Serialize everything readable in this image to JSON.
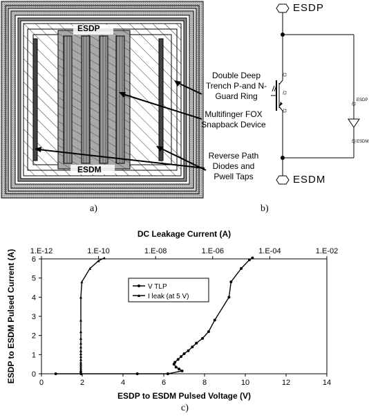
{
  "panel_a": {
    "caption": "a)",
    "label_top": "ESDP",
    "label_bottom": "ESDM",
    "annotations": {
      "guard_ring": "Double Deep Trench P-and N- Guard Ring",
      "fox_device": "Multifinger FOX Snapback Device",
      "diodes": "Reverse Path Diodes and Pwell Taps"
    }
  },
  "panel_b": {
    "caption": "b)",
    "terminal_top": "ESDP",
    "terminal_bottom": "ESDM",
    "small_top": "ESDP",
    "small_bottom": "ESDM"
  },
  "panel_c": {
    "caption": "c)"
  },
  "chart_data": {
    "type": "scatter",
    "title": "DC Leakage Current (A)",
    "xlabel": "ESDP to ESDM Pulsed Voltage (V)",
    "ylabel": "ESDP to ESDM Pulsed Current (A)",
    "xlim": [
      0,
      14
    ],
    "ylim": [
      0,
      6
    ],
    "x_ticks": [
      "0",
      "2",
      "4",
      "6",
      "8",
      "10",
      "12",
      "14"
    ],
    "y_ticks": [
      "0",
      "1",
      "2",
      "3",
      "4",
      "5",
      "6"
    ],
    "top_axis": {
      "scale": "log",
      "range": [
        1e-12,
        0.01
      ],
      "ticks": [
        "1.E-12",
        "1.E-10",
        "1.E-08",
        "1.E-06",
        "1.E-04",
        "1.E-02"
      ]
    },
    "legend": {
      "placement": "center",
      "entries": [
        "V TLP",
        "I leak (at 5 V)"
      ]
    },
    "series": [
      {
        "name": "V TLP",
        "x": [
          0.7,
          4.7,
          6.2,
          6.9,
          6.75,
          6.6,
          6.5,
          6.55,
          6.7,
          6.85,
          7.0,
          7.2,
          7.4,
          7.6,
          7.9,
          8.2,
          8.5,
          9.2,
          9.3,
          9.8,
          10.2,
          10.35
        ],
        "y": [
          0.0,
          0.0,
          0.0,
          0.15,
          0.25,
          0.35,
          0.5,
          0.6,
          0.75,
          0.9,
          1.05,
          1.2,
          1.4,
          1.6,
          1.85,
          2.2,
          2.8,
          4.0,
          4.8,
          5.5,
          5.95,
          6.05
        ]
      },
      {
        "name": "I leak (at 5 V)",
        "x_leak": [
          2.5e-11,
          2.4e-11,
          2.4e-11,
          2.4e-11,
          2.4e-11,
          2.4e-11,
          2.4e-11,
          2.4e-11,
          2.4e-11,
          2.4e-11,
          2.4e-11,
          2.4e-11,
          2.4e-11,
          2.4e-11,
          2.4e-11,
          2.4e-11,
          2.4e-11,
          2.4e-11,
          2.4e-11,
          2.6e-11,
          5e-11,
          1e-10,
          1.6e-10
        ],
        "y": [
          0.0,
          0.05,
          0.1,
          0.15,
          0.2,
          0.3,
          0.4,
          0.5,
          0.6,
          0.75,
          0.9,
          1.05,
          1.2,
          1.4,
          1.6,
          1.85,
          2.2,
          2.8,
          4.0,
          4.8,
          5.5,
          5.9,
          6.05
        ]
      }
    ]
  }
}
